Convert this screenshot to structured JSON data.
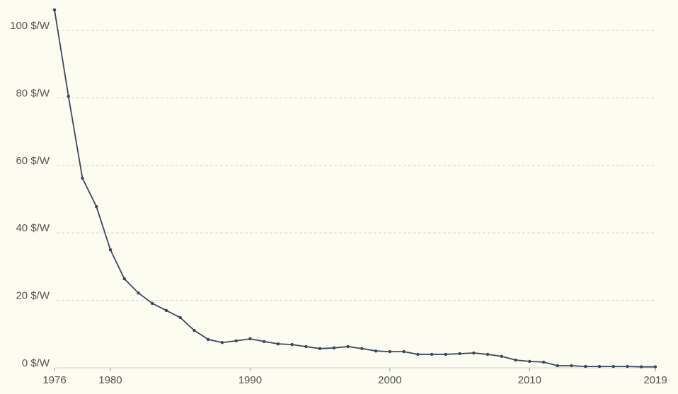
{
  "chart_data": {
    "type": "line",
    "x": [
      1976,
      1977,
      1978,
      1979,
      1980,
      1981,
      1982,
      1983,
      1984,
      1985,
      1986,
      1987,
      1988,
      1989,
      1990,
      1991,
      1992,
      1993,
      1994,
      1995,
      1996,
      1997,
      1998,
      1999,
      2000,
      2001,
      2002,
      2003,
      2004,
      2005,
      2006,
      2007,
      2008,
      2009,
      2010,
      2011,
      2012,
      2013,
      2014,
      2015,
      2016,
      2017,
      2018,
      2019
    ],
    "series": [
      {
        "color": "#3b4663",
        "values": [
          106.1,
          80.5,
          56.2,
          47.8,
          35.0,
          26.4,
          22.2,
          19.1,
          17.0,
          14.9,
          11.1,
          8.4,
          7.5,
          8.0,
          8.6,
          7.8,
          7.1,
          6.9,
          6.3,
          5.7,
          5.9,
          6.3,
          5.7,
          5.0,
          4.8,
          4.8,
          4.0,
          4.0,
          4.0,
          4.2,
          4.4,
          4.0,
          3.4,
          2.3,
          1.9,
          1.7,
          0.63,
          0.63,
          0.4,
          0.4,
          0.4,
          0.4,
          0.3,
          0.3
        ]
      }
    ],
    "xlim": [
      1976,
      2019
    ],
    "xticks": [
      1976,
      1980,
      1990,
      2000,
      2010,
      2019
    ],
    "ylim": [
      0,
      106.1
    ],
    "yticks": [
      {
        "value": 0,
        "label": "0 $/W"
      },
      {
        "value": 20,
        "label": "20 $/W"
      },
      {
        "value": 40,
        "label": "40 $/W"
      },
      {
        "value": 60,
        "label": "60 $/W"
      },
      {
        "value": 80,
        "label": "80 $/W"
      },
      {
        "value": 100,
        "label": "100 $/W"
      }
    ],
    "grid": true
  }
}
